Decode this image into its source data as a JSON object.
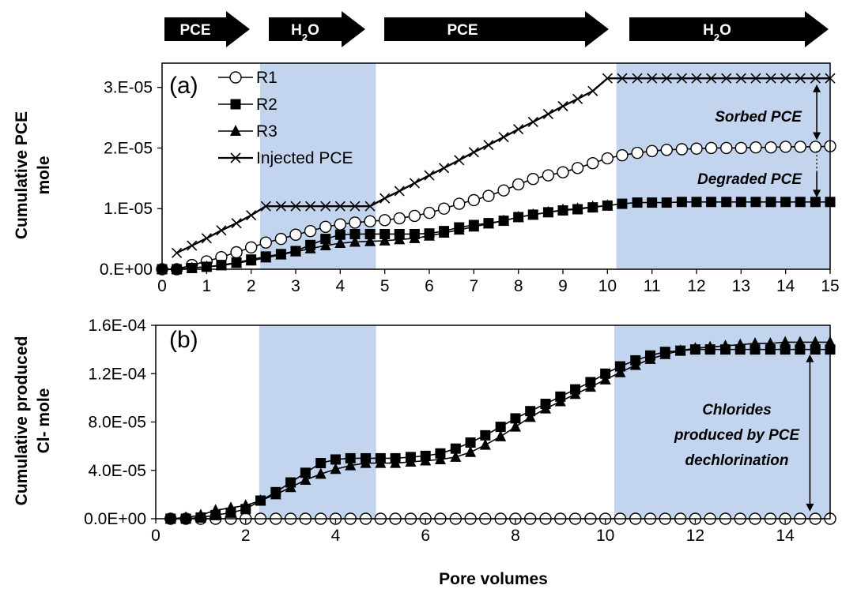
{
  "phases": [
    {
      "label": "PCE",
      "sub": ""
    },
    {
      "label": "H",
      "sub": "2",
      "tail": "O"
    },
    {
      "label": "PCE",
      "sub": ""
    },
    {
      "label": "H",
      "sub": "2",
      "tail": "O"
    }
  ],
  "xlabel": "Pore volumes",
  "colors": {
    "shade": "#c3d5ee",
    "ink": "#000000",
    "phase_arrow": "#000000"
  },
  "chart_data": [
    {
      "type": "line",
      "panel_label": "(a)",
      "ylabel_lines": [
        "Cumulative PCE",
        "mole"
      ],
      "xlim": [
        0,
        15
      ],
      "ylim": [
        0,
        3.4e-05
      ],
      "x_ticks": [
        0,
        1,
        2,
        3,
        4,
        5,
        6,
        7,
        8,
        9,
        10,
        11,
        12,
        13,
        14,
        15
      ],
      "y_ticks": [
        0,
        1e-05,
        2e-05,
        3e-05
      ],
      "y_tick_labels": [
        "0.E+00",
        "1.E-05",
        "2.E-05",
        "3.E-05"
      ],
      "shaded_ranges": [
        [
          2.2,
          4.8
        ],
        [
          10.2,
          15
        ]
      ],
      "legend": {
        "placement": "top-left",
        "entries": [
          "R1",
          "R2",
          "R3",
          "Injected PCE"
        ]
      },
      "annotations": [
        "Sorbed PCE",
        "Degraded PCE"
      ],
      "series": [
        {
          "name": "R1",
          "marker": "open-circle",
          "x": [
            0,
            0.33,
            0.67,
            1,
            1.33,
            1.67,
            2,
            2.33,
            2.67,
            3,
            3.33,
            3.67,
            4,
            4.33,
            4.67,
            5,
            5.33,
            5.67,
            6,
            6.33,
            6.67,
            7,
            7.33,
            7.67,
            8,
            8.33,
            8.67,
            9,
            9.33,
            9.67,
            10,
            10.33,
            10.67,
            11,
            11.33,
            11.67,
            12,
            12.33,
            12.67,
            13,
            13.33,
            13.67,
            14,
            14.33,
            14.67,
            15
          ],
          "y": [
            0,
            0,
            7e-07,
            1.3e-06,
            2e-06,
            2.8e-06,
            3.6e-06,
            4.4e-06,
            5e-06,
            5.7e-06,
            6.3e-06,
            7e-06,
            7.4e-06,
            7.7e-06,
            7.9e-06,
            8.1e-06,
            8.4e-06,
            8.8e-06,
            9.3e-06,
            1e-05,
            1.08e-05,
            1.14e-05,
            1.21e-05,
            1.3e-05,
            1.4e-05,
            1.49e-05,
            1.55e-05,
            1.6e-05,
            1.67e-05,
            1.75e-05,
            1.83e-05,
            1.88e-05,
            1.92e-05,
            1.95e-05,
            1.97e-05,
            1.98e-05,
            1.99e-05,
            2e-05,
            2e-05,
            2e-05,
            2.01e-05,
            2.01e-05,
            2.02e-05,
            2.02e-05,
            2.02e-05,
            2.03e-05
          ]
        },
        {
          "name": "R2",
          "marker": "filled-square",
          "x": [
            0,
            0.33,
            0.67,
            1,
            1.33,
            1.67,
            2,
            2.33,
            2.67,
            3,
            3.33,
            3.67,
            4,
            4.33,
            4.67,
            5,
            5.33,
            5.67,
            6,
            6.33,
            6.67,
            7,
            7.33,
            7.67,
            8,
            8.33,
            8.67,
            9,
            9.33,
            9.67,
            10,
            10.33,
            10.67,
            11,
            11.33,
            11.67,
            12,
            12.33,
            12.67,
            13,
            13.33,
            13.67,
            14,
            14.33,
            14.67,
            15
          ],
          "y": [
            0,
            0,
            2e-07,
            4e-07,
            7e-07,
            1.1e-06,
            1.6e-06,
            2.1e-06,
            2.5e-06,
            3e-06,
            4e-06,
            5e-06,
            5.7e-06,
            5.8e-06,
            5.8e-06,
            5.8e-06,
            5.8e-06,
            5.8e-06,
            5.9e-06,
            6.3e-06,
            6.9e-06,
            7.3e-06,
            7.6e-06,
            8e-06,
            8.6e-06,
            9e-06,
            9.4e-06,
            9.7e-06,
            9.9e-06,
            1.02e-05,
            1.05e-05,
            1.08e-05,
            1.1e-05,
            1.1e-05,
            1.1e-05,
            1.11e-05,
            1.11e-05,
            1.11e-05,
            1.11e-05,
            1.11e-05,
            1.11e-05,
            1.11e-05,
            1.11e-05,
            1.11e-05,
            1.11e-05,
            1.11e-05
          ]
        },
        {
          "name": "R3",
          "marker": "filled-triangle",
          "x": [
            0,
            0.33,
            0.67,
            1,
            1.33,
            1.67,
            2,
            2.33,
            2.67,
            3,
            3.33,
            3.67,
            4,
            4.33,
            4.67,
            5,
            5.33,
            5.67,
            6,
            6.33,
            6.67,
            7,
            7.33,
            7.67,
            8,
            8.33,
            8.67,
            9,
            9.33,
            9.67,
            10
          ],
          "y": [
            0,
            0,
            2e-07,
            4e-07,
            6e-07,
            1e-06,
            1.4e-06,
            1.9e-06,
            2.4e-06,
            2.9e-06,
            3.4e-06,
            3.9e-06,
            4.3e-06,
            4.5e-06,
            4.6e-06,
            4.7e-06,
            4.9e-06,
            5.1e-06,
            5.5e-06,
            6e-06,
            6.5e-06,
            7e-06,
            7.5e-06,
            8e-06,
            8.6e-06,
            9e-06,
            9.4e-06,
            9.8e-06,
            1e-05,
            1.03e-05,
            1.05e-05
          ]
        },
        {
          "name": "Injected PCE",
          "marker": "x",
          "x": [
            0.33,
            0.67,
            1,
            1.33,
            1.67,
            2,
            2.33,
            2.67,
            3,
            3.33,
            3.67,
            4,
            4.33,
            4.67,
            5,
            5.33,
            5.67,
            6,
            6.33,
            6.67,
            7,
            7.33,
            7.67,
            8,
            8.33,
            8.67,
            9,
            9.33,
            9.67,
            10,
            10.33,
            10.67,
            11,
            11.33,
            11.67,
            12,
            12.33,
            12.67,
            13,
            13.33,
            13.67,
            14,
            14.33,
            14.67,
            15
          ],
          "y": [
            2.7e-06,
            3.9e-06,
            5.1e-06,
            6.4e-06,
            7.6e-06,
            8.9e-06,
            1.04e-05,
            1.04e-05,
            1.04e-05,
            1.04e-05,
            1.04e-05,
            1.04e-05,
            1.04e-05,
            1.04e-05,
            1.17e-05,
            1.29e-05,
            1.42e-05,
            1.55e-05,
            1.67e-05,
            1.8e-05,
            1.93e-05,
            2.05e-05,
            2.18e-05,
            2.31e-05,
            2.43e-05,
            2.56e-05,
            2.69e-05,
            2.81e-05,
            2.94e-05,
            3.15e-05,
            3.15e-05,
            3.15e-05,
            3.15e-05,
            3.15e-05,
            3.15e-05,
            3.15e-05,
            3.15e-05,
            3.15e-05,
            3.15e-05,
            3.15e-05,
            3.15e-05,
            3.15e-05,
            3.15e-05,
            3.15e-05,
            3.15e-05
          ]
        }
      ]
    },
    {
      "type": "line",
      "panel_label": "(b)",
      "ylabel_lines": [
        "Cumulative produced",
        "Cl-  mole"
      ],
      "xlim": [
        0,
        15
      ],
      "ylim": [
        0,
        0.00016
      ],
      "x_ticks": [
        0,
        2,
        4,
        6,
        8,
        10,
        12,
        14
      ],
      "y_ticks": [
        0,
        4e-05,
        8e-05,
        0.00012,
        0.00016
      ],
      "y_tick_labels": [
        "0.0E+00",
        "4.0E-05",
        "8.0E-05",
        "1.2E-04",
        "1.6E-04"
      ],
      "shaded_ranges": [
        [
          2.3,
          4.9
        ],
        [
          10.2,
          15
        ]
      ],
      "annotations": [
        "Chlorides",
        "produced by PCE",
        "dechlorination"
      ],
      "series": [
        {
          "name": "R1",
          "marker": "open-circle",
          "x": [
            0.33,
            0.67,
            1,
            1.33,
            1.67,
            2,
            2.33,
            2.67,
            3,
            3.33,
            3.67,
            4,
            4.33,
            4.67,
            5,
            5.33,
            5.67,
            6,
            6.33,
            6.67,
            7,
            7.33,
            7.67,
            8,
            8.33,
            8.67,
            9,
            9.33,
            9.67,
            10,
            10.33,
            10.67,
            11,
            11.33,
            11.67,
            12,
            12.33,
            12.67,
            13,
            13.33,
            13.67,
            14,
            14.33,
            14.67,
            15
          ],
          "y": [
            0,
            0,
            0,
            0,
            0,
            0,
            0,
            0,
            0,
            0,
            0,
            0,
            0,
            0,
            0,
            0,
            0,
            0,
            0,
            0,
            0,
            0,
            0,
            0,
            0,
            0,
            0,
            0,
            0,
            0,
            0,
            0,
            0,
            0,
            0,
            0,
            0,
            0,
            0,
            0,
            0,
            0,
            0,
            0,
            0
          ]
        },
        {
          "name": "R2",
          "marker": "filled-square",
          "x": [
            0.33,
            0.67,
            1,
            1.33,
            1.67,
            2,
            2.33,
            2.67,
            3,
            3.33,
            3.67,
            4,
            4.33,
            4.67,
            5,
            5.33,
            5.67,
            6,
            6.33,
            6.67,
            7,
            7.33,
            7.67,
            8,
            8.33,
            8.67,
            9,
            9.33,
            9.67,
            10,
            10.33,
            10.67,
            11,
            11.33,
            11.67,
            12,
            12.33,
            12.67,
            13,
            13.33,
            13.67,
            14,
            14.33,
            14.67,
            15
          ],
          "y": [
            0,
            0,
            1e-06,
            3e-06,
            5e-06,
            8e-06,
            1.5e-05,
            2.2e-05,
            3e-05,
            3.8e-05,
            4.6e-05,
            4.9e-05,
            5e-05,
            5e-05,
            5e-05,
            5e-05,
            5.1e-05,
            5.2e-05,
            5.4e-05,
            5.8e-05,
            6.3e-05,
            6.9e-05,
            7.6e-05,
            8.3e-05,
            8.9e-05,
            9.5e-05,
            0.000101,
            0.000107,
            0.000113,
            0.00012,
            0.000126,
            0.000131,
            0.000135,
            0.000138,
            0.000139,
            0.00014,
            0.00014,
            0.00014,
            0.00014,
            0.00014,
            0.00014,
            0.00014,
            0.00014,
            0.00014,
            0.00014
          ]
        },
        {
          "name": "R3",
          "marker": "filled-triangle",
          "x": [
            0.33,
            0.67,
            1,
            1.33,
            1.67,
            2,
            2.33,
            2.67,
            3,
            3.33,
            3.67,
            4,
            4.33,
            4.67,
            5,
            5.33,
            5.67,
            6,
            6.33,
            6.67,
            7,
            7.33,
            7.67,
            8,
            8.33,
            8.67,
            9,
            9.33,
            9.67,
            10,
            10.33,
            10.67,
            11,
            11.33,
            11.67,
            12,
            12.33,
            12.67,
            13,
            13.33,
            13.67,
            14,
            14.33,
            14.67,
            15
          ],
          "y": [
            0,
            1e-06,
            3e-06,
            7e-06,
            9e-06,
            1.1e-05,
            1.5e-05,
            2e-05,
            2.6e-05,
            3.2e-05,
            3.7e-05,
            4.1e-05,
            4.4e-05,
            4.6e-05,
            4.6e-05,
            4.6e-05,
            4.7e-05,
            4.8e-05,
            4.9e-05,
            5.1e-05,
            5.5e-05,
            6.1e-05,
            6.8e-05,
            7.6e-05,
            8.4e-05,
            9.1e-05,
            9.7e-05,
            0.000103,
            0.000109,
            0.000115,
            0.000121,
            0.000127,
            0.000132,
            0.000136,
            0.000139,
            0.000141,
            0.000142,
            0.000143,
            0.000144,
            0.000145,
            0.000145,
            0.000146,
            0.000146,
            0.000146,
            0.000146
          ]
        }
      ]
    }
  ]
}
